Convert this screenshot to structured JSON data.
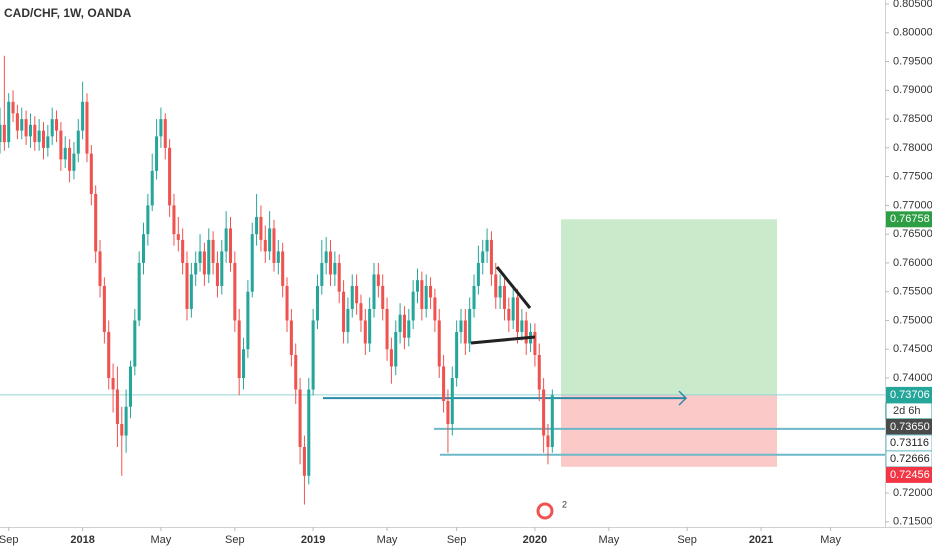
{
  "chart_data": {
    "type": "candlestick",
    "title": "CAD/CHF, 1W, OANDA",
    "up_color": "#26a69a",
    "down_color": "#ef5350",
    "xlim": [
      0,
      203.5
    ],
    "xticks": [
      {
        "value": 2,
        "label": "Sep"
      },
      {
        "value": 19,
        "label": "2018"
      },
      {
        "value": 37,
        "label": "May"
      },
      {
        "value": 54,
        "label": "Sep"
      },
      {
        "value": 72,
        "label": "2019"
      },
      {
        "value": 89,
        "label": "May"
      },
      {
        "value": 105,
        "label": "Sep"
      },
      {
        "value": 123,
        "label": "2020"
      },
      {
        "value": 140,
        "label": "May"
      },
      {
        "value": 158,
        "label": "Sep"
      },
      {
        "value": 175,
        "label": "2021"
      },
      {
        "value": 191,
        "label": "May"
      }
    ],
    "ylim": [
      0.7141,
      0.8057
    ],
    "yticks": [
      {
        "value": 0.805,
        "label": "0.80500"
      },
      {
        "value": 0.8,
        "label": "0.80000"
      },
      {
        "value": 0.795,
        "label": "0.79500"
      },
      {
        "value": 0.79,
        "label": "0.79000"
      },
      {
        "value": 0.785,
        "label": "0.78500"
      },
      {
        "value": 0.78,
        "label": "0.78000"
      },
      {
        "value": 0.775,
        "label": "0.77500"
      },
      {
        "value": 0.77,
        "label": "0.77000"
      },
      {
        "value": 0.765,
        "label": "0.76500"
      },
      {
        "value": 0.76,
        "label": "0.76000"
      },
      {
        "value": 0.755,
        "label": "0.75500"
      },
      {
        "value": 0.75,
        "label": "0.75000"
      },
      {
        "value": 0.745,
        "label": "0.74500"
      },
      {
        "value": 0.74,
        "label": "0.74000"
      },
      {
        "value": 0.72,
        "label": "0.72000"
      },
      {
        "value": 0.715,
        "label": "0.71500"
      }
    ],
    "ohlc": [
      [
        0.781,
        0.787,
        0.779,
        0.784
      ],
      [
        0.784,
        0.796,
        0.7795,
        0.781
      ],
      [
        0.781,
        0.7895,
        0.78,
        0.788
      ],
      [
        0.788,
        0.79,
        0.7845,
        0.786
      ],
      [
        0.786,
        0.7875,
        0.7815,
        0.783
      ],
      [
        0.783,
        0.787,
        0.7815,
        0.785
      ],
      [
        0.785,
        0.7865,
        0.7805,
        0.782
      ],
      [
        0.782,
        0.786,
        0.78,
        0.784
      ],
      [
        0.784,
        0.7855,
        0.7795,
        0.781
      ],
      [
        0.781,
        0.785,
        0.7795,
        0.783
      ],
      [
        0.783,
        0.7845,
        0.778,
        0.78
      ],
      [
        0.78,
        0.784,
        0.7785,
        0.782
      ],
      [
        0.782,
        0.787,
        0.7805,
        0.785
      ],
      [
        0.785,
        0.7865,
        0.781,
        0.783
      ],
      [
        0.783,
        0.7845,
        0.776,
        0.778
      ],
      [
        0.778,
        0.782,
        0.7765,
        0.78
      ],
      [
        0.78,
        0.7815,
        0.774,
        0.776
      ],
      [
        0.776,
        0.781,
        0.7745,
        0.779
      ],
      [
        0.779,
        0.785,
        0.7775,
        0.783
      ],
      [
        0.783,
        0.7915,
        0.7815,
        0.788
      ],
      [
        0.788,
        0.7895,
        0.7775,
        0.779
      ],
      [
        0.779,
        0.7805,
        0.77,
        0.772
      ],
      [
        0.772,
        0.7735,
        0.76,
        0.762
      ],
      [
        0.762,
        0.764,
        0.754,
        0.756
      ],
      [
        0.756,
        0.7575,
        0.746,
        0.748
      ],
      [
        0.748,
        0.75,
        0.738,
        0.74
      ],
      [
        0.74,
        0.7425,
        0.734,
        0.738
      ],
      [
        0.738,
        0.742,
        0.728,
        0.732
      ],
      [
        0.732,
        0.735,
        0.723,
        0.73
      ],
      [
        0.73,
        0.738,
        0.727,
        0.735
      ],
      [
        0.735,
        0.743,
        0.733,
        0.742
      ],
      [
        0.742,
        0.752,
        0.7405,
        0.75
      ],
      [
        0.75,
        0.762,
        0.749,
        0.76
      ],
      [
        0.76,
        0.767,
        0.758,
        0.765
      ],
      [
        0.765,
        0.772,
        0.763,
        0.77
      ],
      [
        0.77,
        0.779,
        0.769,
        0.776
      ],
      [
        0.776,
        0.785,
        0.7745,
        0.782
      ],
      [
        0.782,
        0.787,
        0.78,
        0.785
      ],
      [
        0.785,
        0.786,
        0.778,
        0.78
      ],
      [
        0.78,
        0.7815,
        0.768,
        0.77
      ],
      [
        0.77,
        0.772,
        0.763,
        0.765
      ],
      [
        0.765,
        0.768,
        0.762,
        0.764
      ],
      [
        0.764,
        0.766,
        0.758,
        0.76
      ],
      [
        0.76,
        0.762,
        0.75,
        0.752
      ],
      [
        0.752,
        0.76,
        0.7505,
        0.758
      ],
      [
        0.758,
        0.762,
        0.756,
        0.76
      ],
      [
        0.76,
        0.765,
        0.7585,
        0.762
      ],
      [
        0.762,
        0.7635,
        0.756,
        0.758
      ],
      [
        0.758,
        0.766,
        0.7565,
        0.764
      ],
      [
        0.764,
        0.7655,
        0.758,
        0.76
      ],
      [
        0.76,
        0.762,
        0.754,
        0.756
      ],
      [
        0.756,
        0.764,
        0.7545,
        0.762
      ],
      [
        0.762,
        0.769,
        0.76,
        0.766
      ],
      [
        0.766,
        0.768,
        0.7585,
        0.76
      ],
      [
        0.76,
        0.762,
        0.748,
        0.75
      ],
      [
        0.75,
        0.752,
        0.737,
        0.74
      ],
      [
        0.74,
        0.747,
        0.738,
        0.745
      ],
      [
        0.745,
        0.757,
        0.7435,
        0.755
      ],
      [
        0.755,
        0.767,
        0.754,
        0.765
      ],
      [
        0.765,
        0.772,
        0.763,
        0.768
      ],
      [
        0.768,
        0.77,
        0.762,
        0.764
      ],
      [
        0.764,
        0.7665,
        0.76,
        0.762
      ],
      [
        0.762,
        0.769,
        0.7605,
        0.766
      ],
      [
        0.766,
        0.7675,
        0.7585,
        0.76
      ],
      [
        0.76,
        0.764,
        0.758,
        0.762
      ],
      [
        0.762,
        0.7635,
        0.754,
        0.756
      ],
      [
        0.756,
        0.7575,
        0.748,
        0.75
      ],
      [
        0.75,
        0.752,
        0.742,
        0.744
      ],
      [
        0.744,
        0.746,
        0.7355,
        0.738
      ],
      [
        0.738,
        0.74,
        0.725,
        0.728
      ],
      [
        0.728,
        0.73,
        0.718,
        0.723
      ],
      [
        0.723,
        0.74,
        0.7215,
        0.738
      ],
      [
        0.738,
        0.752,
        0.737,
        0.75
      ],
      [
        0.75,
        0.758,
        0.7485,
        0.756
      ],
      [
        0.756,
        0.764,
        0.7545,
        0.76
      ],
      [
        0.76,
        0.7645,
        0.758,
        0.762
      ],
      [
        0.762,
        0.764,
        0.756,
        0.758
      ],
      [
        0.758,
        0.762,
        0.756,
        0.76
      ],
      [
        0.76,
        0.7615,
        0.753,
        0.755
      ],
      [
        0.755,
        0.757,
        0.746,
        0.748
      ],
      [
        0.748,
        0.754,
        0.746,
        0.752
      ],
      [
        0.752,
        0.758,
        0.7505,
        0.756
      ],
      [
        0.756,
        0.758,
        0.751,
        0.753
      ],
      [
        0.753,
        0.7545,
        0.748,
        0.75
      ],
      [
        0.75,
        0.752,
        0.744,
        0.746
      ],
      [
        0.746,
        0.754,
        0.7445,
        0.752
      ],
      [
        0.752,
        0.76,
        0.7505,
        0.758
      ],
      [
        0.758,
        0.76,
        0.754,
        0.756
      ],
      [
        0.756,
        0.758,
        0.75,
        0.752
      ],
      [
        0.752,
        0.754,
        0.743,
        0.745
      ],
      [
        0.745,
        0.747,
        0.739,
        0.742
      ],
      [
        0.742,
        0.75,
        0.7405,
        0.748
      ],
      [
        0.748,
        0.753,
        0.746,
        0.751
      ],
      [
        0.751,
        0.7525,
        0.745,
        0.747
      ],
      [
        0.747,
        0.752,
        0.7455,
        0.75
      ],
      [
        0.75,
        0.757,
        0.7485,
        0.755
      ],
      [
        0.755,
        0.759,
        0.753,
        0.757
      ],
      [
        0.757,
        0.7585,
        0.75,
        0.752
      ],
      [
        0.752,
        0.758,
        0.7505,
        0.756
      ],
      [
        0.756,
        0.7575,
        0.752,
        0.754
      ],
      [
        0.754,
        0.7555,
        0.748,
        0.75
      ],
      [
        0.75,
        0.752,
        0.74,
        0.742
      ],
      [
        0.742,
        0.744,
        0.734,
        0.736
      ],
      [
        0.736,
        0.738,
        0.727,
        0.732
      ],
      [
        0.732,
        0.742,
        0.73,
        0.74
      ],
      [
        0.74,
        0.75,
        0.7385,
        0.748
      ],
      [
        0.748,
        0.752,
        0.746,
        0.75
      ],
      [
        0.75,
        0.752,
        0.744,
        0.746
      ],
      [
        0.746,
        0.754,
        0.7445,
        0.752
      ],
      [
        0.752,
        0.758,
        0.7505,
        0.756
      ],
      [
        0.756,
        0.763,
        0.7545,
        0.76
      ],
      [
        0.76,
        0.764,
        0.758,
        0.762
      ],
      [
        0.762,
        0.766,
        0.76,
        0.764
      ],
      [
        0.764,
        0.7655,
        0.756,
        0.758
      ],
      [
        0.758,
        0.76,
        0.752,
        0.754
      ],
      [
        0.754,
        0.758,
        0.752,
        0.756
      ],
      [
        0.756,
        0.7575,
        0.75,
        0.752
      ],
      [
        0.752,
        0.754,
        0.748,
        0.75
      ],
      [
        0.75,
        0.756,
        0.7485,
        0.754
      ],
      [
        0.754,
        0.7555,
        0.746,
        0.748
      ],
      [
        0.748,
        0.752,
        0.7465,
        0.75
      ],
      [
        0.75,
        0.7515,
        0.744,
        0.746
      ],
      [
        0.746,
        0.7495,
        0.7445,
        0.748
      ],
      [
        0.748,
        0.7495,
        0.742,
        0.744
      ],
      [
        0.744,
        0.746,
        0.736,
        0.738
      ],
      [
        0.738,
        0.74,
        0.727,
        0.73
      ],
      [
        0.73,
        0.732,
        0.725,
        0.728
      ],
      [
        0.728,
        0.738,
        0.727,
        0.737
      ]
    ],
    "position": {
      "target": 0.76758,
      "entry": 0.73706,
      "stop": 0.72456,
      "target_color": "#c9ebcb",
      "stop_color": "#fcc9c9"
    },
    "lines": [
      {
        "value": 0.7365,
        "color": "#2a8aa8"
      },
      {
        "value": 0.73116,
        "color": "#6cb8c8"
      },
      {
        "value": 0.72666,
        "color": "#6cb8c8"
      }
    ],
    "price_labels": [
      {
        "value": 0.76758,
        "color": "#2e9e44"
      },
      {
        "value": 0.73706,
        "color": "#26a69a"
      },
      {
        "value": 0.7365,
        "label": "0.73650",
        "color": "#4a4a4a"
      },
      {
        "value": 0.73116,
        "color": "#ffffff"
      },
      {
        "value": 0.72666,
        "color": "#ffffff"
      },
      {
        "value": 0.72456,
        "color": "#f23645"
      }
    ],
    "countdown": "2d 6h",
    "events_badge": "2"
  }
}
